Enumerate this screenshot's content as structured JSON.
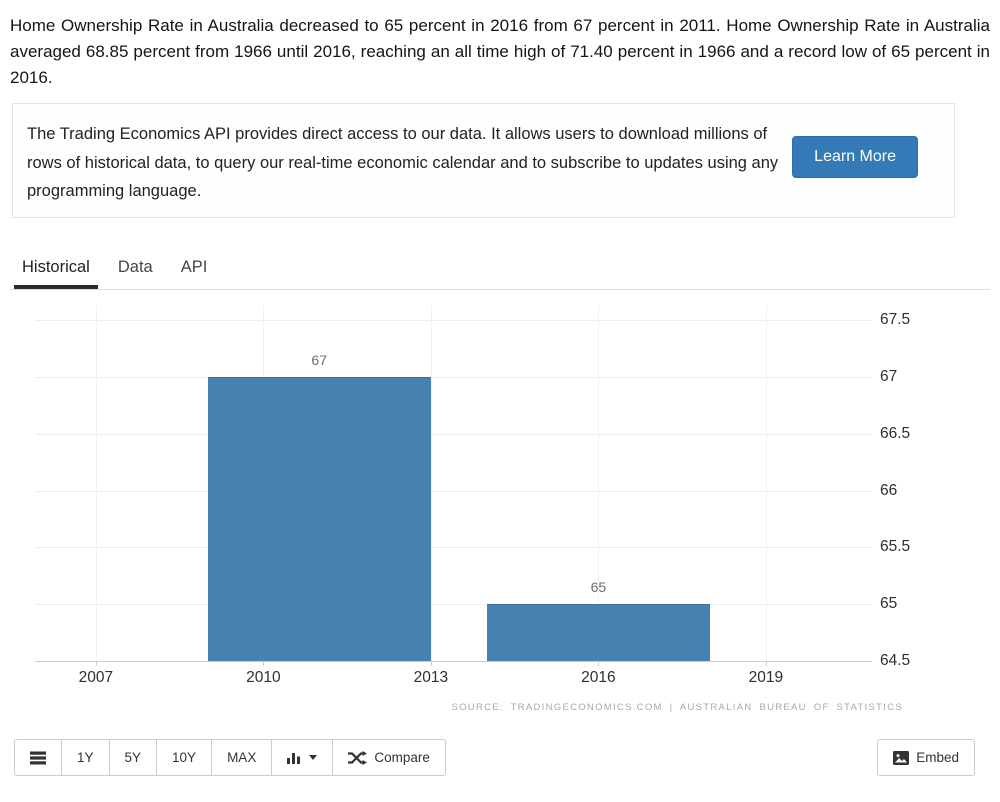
{
  "summary": {
    "text": "Home Ownership Rate in Australia decreased to 65 percent in 2016 from 67 percent in 2011. Home Ownership Rate in Australia averaged 68.85 percent from 1966 until 2016, reaching an all time high of 71.40 percent in 1966 and a record low of 65 percent in 2016."
  },
  "api_promo": {
    "text": "The Trading Economics API provides direct access to our data. It allows users to download millions of rows of historical data, to query our real-time economic calendar and to subscribe to updates using any programming language.",
    "button_label": "Learn More",
    "button_color": "#337ab7"
  },
  "tabs": [
    {
      "label": "Historical",
      "active": true
    },
    {
      "label": "Data",
      "active": false
    },
    {
      "label": "API",
      "active": false
    }
  ],
  "chart_data": {
    "type": "bar",
    "series": [
      {
        "name": "Home Ownership Rate",
        "x": [
          2011,
          2016
        ],
        "values": [
          67,
          65
        ]
      }
    ],
    "bar_labels": [
      "67",
      "65"
    ],
    "bar_width_years": 4,
    "x_ticks": [
      "2007",
      "2010",
      "2013",
      "2016",
      "2019"
    ],
    "y_ticks": [
      "67.5",
      "67",
      "66.5",
      "66",
      "65.5",
      "65",
      "64.5"
    ],
    "x_domain": [
      2005.91,
      2020.9
    ],
    "y_domain": [
      64.5,
      67.632
    ],
    "grid": true,
    "legend": "none",
    "bar_color": "#4681b0",
    "bar_label_color": "#6f6f6f",
    "source": "SOURCE: TRADINGECONOMICS.COM | AUSTRALIAN BUREAU OF STATISTICS"
  },
  "toolbar": {
    "range_buttons": [
      "1Y",
      "5Y",
      "10Y",
      "MAX"
    ],
    "compare_label": "Compare",
    "embed_label": "Embed",
    "icons": {
      "menu": "list-icon",
      "chart_type": "column-chart-icon",
      "compare": "shuffle-icon",
      "embed": "image-icon"
    }
  }
}
